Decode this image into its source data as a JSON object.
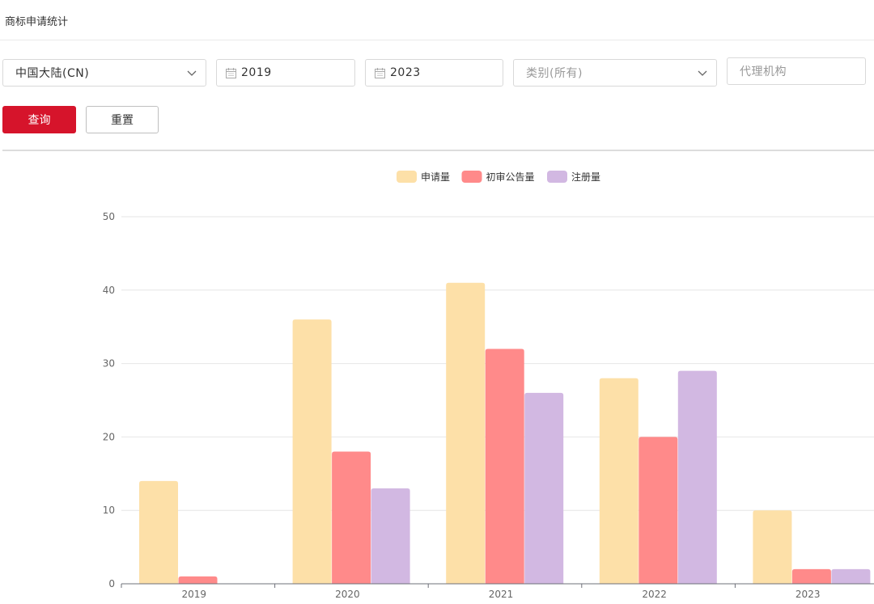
{
  "page": {
    "title": "商标申请统计"
  },
  "filters": {
    "region": {
      "value": "中国大陆(CN)"
    },
    "start_year": {
      "value": "2019"
    },
    "end_year": {
      "value": "2023"
    },
    "category": {
      "value": "类别(所有)"
    },
    "agency": {
      "placeholder": "代理机构"
    }
  },
  "buttons": {
    "query": "查询",
    "reset": "重置"
  },
  "icons": {
    "dropdown": "chevron-down-icon",
    "date": "calendar-icon"
  },
  "colors": {
    "primary": "#d6142b",
    "series": [
      "#fde0a8",
      "#ff8a8a",
      "#d2b8e2"
    ]
  },
  "chart_data": {
    "type": "bar",
    "categories": [
      "2019",
      "2020",
      "2021",
      "2022",
      "2023"
    ],
    "series": [
      {
        "name": "申请量",
        "values": [
          14,
          36,
          41,
          28,
          10
        ]
      },
      {
        "name": "初审公告量",
        "values": [
          1,
          18,
          32,
          20,
          2
        ]
      },
      {
        "name": "注册量",
        "values": [
          0,
          13,
          26,
          29,
          2
        ]
      }
    ],
    "ylim": [
      0,
      50
    ],
    "yticks": [
      0,
      10,
      20,
      30,
      40,
      50
    ],
    "grid": true,
    "legend": "top-center"
  }
}
